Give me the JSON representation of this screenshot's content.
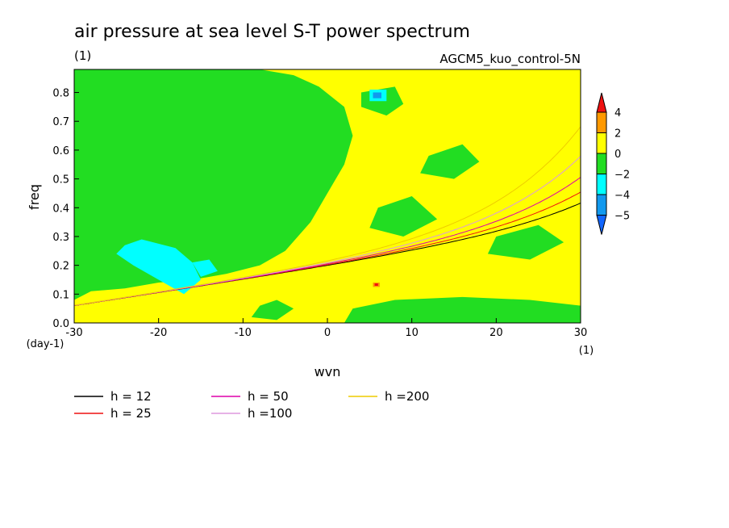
{
  "chart_data": {
    "type": "heatmap",
    "title": "air pressure at sea level S-T power spectrum",
    "subtitle_units": "(1)",
    "experiment": "AGCM5_kuo_control-5N",
    "xlabel": "wvn",
    "ylabel": "freq",
    "x_unit_label": "(1)",
    "y_unit_label": "(day-1)",
    "xlim": [
      -30,
      30
    ],
    "ylim": [
      0.0,
      0.88
    ],
    "x_ticks": [
      -30,
      -20,
      -10,
      0,
      10,
      20,
      30
    ],
    "x_tick_labels": [
      "-30",
      "-20",
      "-10",
      "0",
      "10",
      "20",
      "30"
    ],
    "y_ticks": [
      0.0,
      0.1,
      0.2,
      0.3,
      0.4,
      0.5,
      0.6,
      0.7,
      0.8
    ],
    "y_tick_labels": [
      "0.0",
      "0.1",
      "0.2",
      "0.3",
      "0.4",
      "0.5",
      "0.6",
      "0.7",
      "0.8"
    ],
    "colorbar": {
      "levels": [
        4,
        2,
        0,
        -2,
        -4,
        -5
      ],
      "level_labels": [
        "4",
        "2",
        "0",
        "−2",
        "−4",
        "−5"
      ],
      "colors": [
        "#ee1111",
        "#ff9900",
        "#ffff00",
        "#22dd22",
        "#00ffff",
        "#1199ee",
        "#1166ff"
      ]
    },
    "field_background": "#ffff00",
    "regions": [
      {
        "level": "green",
        "color": "#22dd22",
        "x": [
          -30,
          -28,
          -24,
          -20,
          -16,
          -12,
          -8,
          -5,
          -2,
          0,
          2,
          3,
          2,
          -1,
          -4,
          -8,
          -14,
          -20,
          -26,
          -30
        ],
        "y": [
          0.08,
          0.11,
          0.12,
          0.14,
          0.15,
          0.17,
          0.2,
          0.25,
          0.35,
          0.45,
          0.55,
          0.65,
          0.75,
          0.82,
          0.86,
          0.88,
          0.88,
          0.88,
          0.88,
          0.88
        ]
      },
      {
        "level": "green",
        "color": "#22dd22",
        "x": [
          2,
          8,
          16,
          24,
          30,
          30,
          24,
          16,
          8,
          3
        ],
        "y": [
          0.0,
          0.0,
          0.0,
          0.0,
          0.0,
          0.06,
          0.08,
          0.09,
          0.08,
          0.05
        ]
      },
      {
        "level": "green",
        "color": "#22dd22",
        "x": [
          4,
          8,
          9,
          7,
          4
        ],
        "y": [
          0.8,
          0.82,
          0.76,
          0.72,
          0.75
        ]
      },
      {
        "level": "green",
        "color": "#22dd22",
        "x": [
          12,
          16,
          18,
          15,
          11
        ],
        "y": [
          0.58,
          0.62,
          0.56,
          0.5,
          0.52
        ]
      },
      {
        "level": "green",
        "color": "#22dd22",
        "x": [
          20,
          25,
          28,
          24,
          19
        ],
        "y": [
          0.3,
          0.34,
          0.28,
          0.22,
          0.24
        ]
      },
      {
        "level": "green",
        "color": "#22dd22",
        "x": [
          6,
          10,
          13,
          9,
          5
        ],
        "y": [
          0.4,
          0.44,
          0.36,
          0.3,
          0.33
        ]
      },
      {
        "level": "green",
        "color": "#22dd22",
        "x": [
          -8,
          -6,
          -4,
          -6,
          -9
        ],
        "y": [
          0.06,
          0.08,
          0.05,
          0.01,
          0.02
        ]
      },
      {
        "level": "cyan",
        "color": "#00ffff",
        "x": [
          -24,
          -22,
          -18,
          -16,
          -15,
          -17,
          -20,
          -23,
          -25
        ],
        "y": [
          0.27,
          0.29,
          0.26,
          0.21,
          0.15,
          0.1,
          0.15,
          0.2,
          0.24
        ]
      },
      {
        "level": "cyan",
        "color": "#00ffff",
        "x": [
          -16,
          -14,
          -13,
          -15
        ],
        "y": [
          0.21,
          0.22,
          0.18,
          0.16
        ]
      },
      {
        "level": "cyan",
        "color": "#00ffff",
        "x": [
          5,
          7,
          7,
          5
        ],
        "y": [
          0.81,
          0.81,
          0.77,
          0.77
        ]
      },
      {
        "level": "blue",
        "color": "#1199ee",
        "x": [
          5.4,
          6.4,
          6.4,
          5.4
        ],
        "y": [
          0.8,
          0.8,
          0.78,
          0.78
        ]
      },
      {
        "level": "orange",
        "color": "#ff9900",
        "x": [
          5.4,
          6.2,
          6.2,
          5.4
        ],
        "y": [
          0.14,
          0.14,
          0.125,
          0.125
        ]
      },
      {
        "level": "red",
        "color": "#ee1111",
        "x": [
          5.6,
          6.0,
          6.0,
          5.6
        ],
        "y": [
          0.137,
          0.137,
          0.129,
          0.129
        ]
      }
    ],
    "dispersion_curves": [
      {
        "name": "h = 12",
        "h": 12,
        "color": "#000000"
      },
      {
        "name": "h = 25",
        "h": 25,
        "color": "#ee1111"
      },
      {
        "name": "h = 50",
        "h": 50,
        "color": "#dd00aa"
      },
      {
        "name": "h =100",
        "h": 100,
        "color": "#dd99dd"
      },
      {
        "name": "h =200",
        "h": 200,
        "color": "#eecc00"
      }
    ]
  }
}
